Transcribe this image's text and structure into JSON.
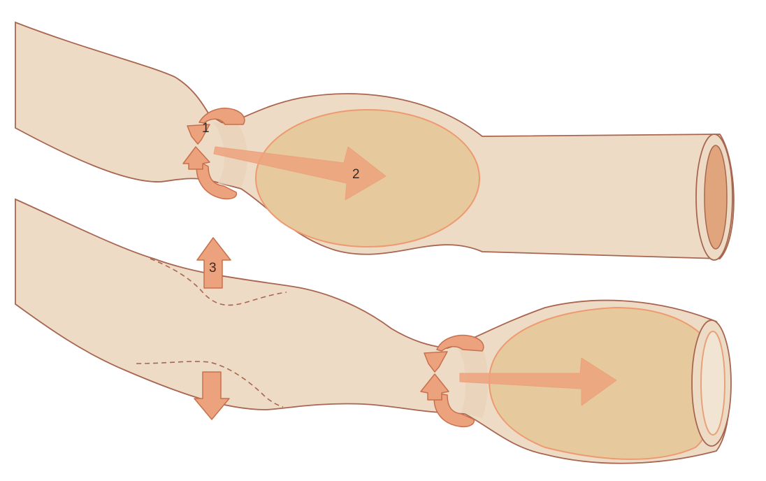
{
  "colors": {
    "tube_fill": "#eddbc6",
    "tube_stroke": "#a86650",
    "bolus_fill": "#e6c99c",
    "bolus_stroke": "#ee9a70",
    "arrow_fill": "#eca27c",
    "arrow_stroke": "#c8704d",
    "lumen_fill": "#e0a57c",
    "background": "#ffffff"
  },
  "labels": {
    "step1": "1",
    "step2": "2",
    "step3": "3"
  },
  "icons": [
    "sphincter-contraction-arrow",
    "propulsion-arrow",
    "wall-movement-arrow"
  ]
}
